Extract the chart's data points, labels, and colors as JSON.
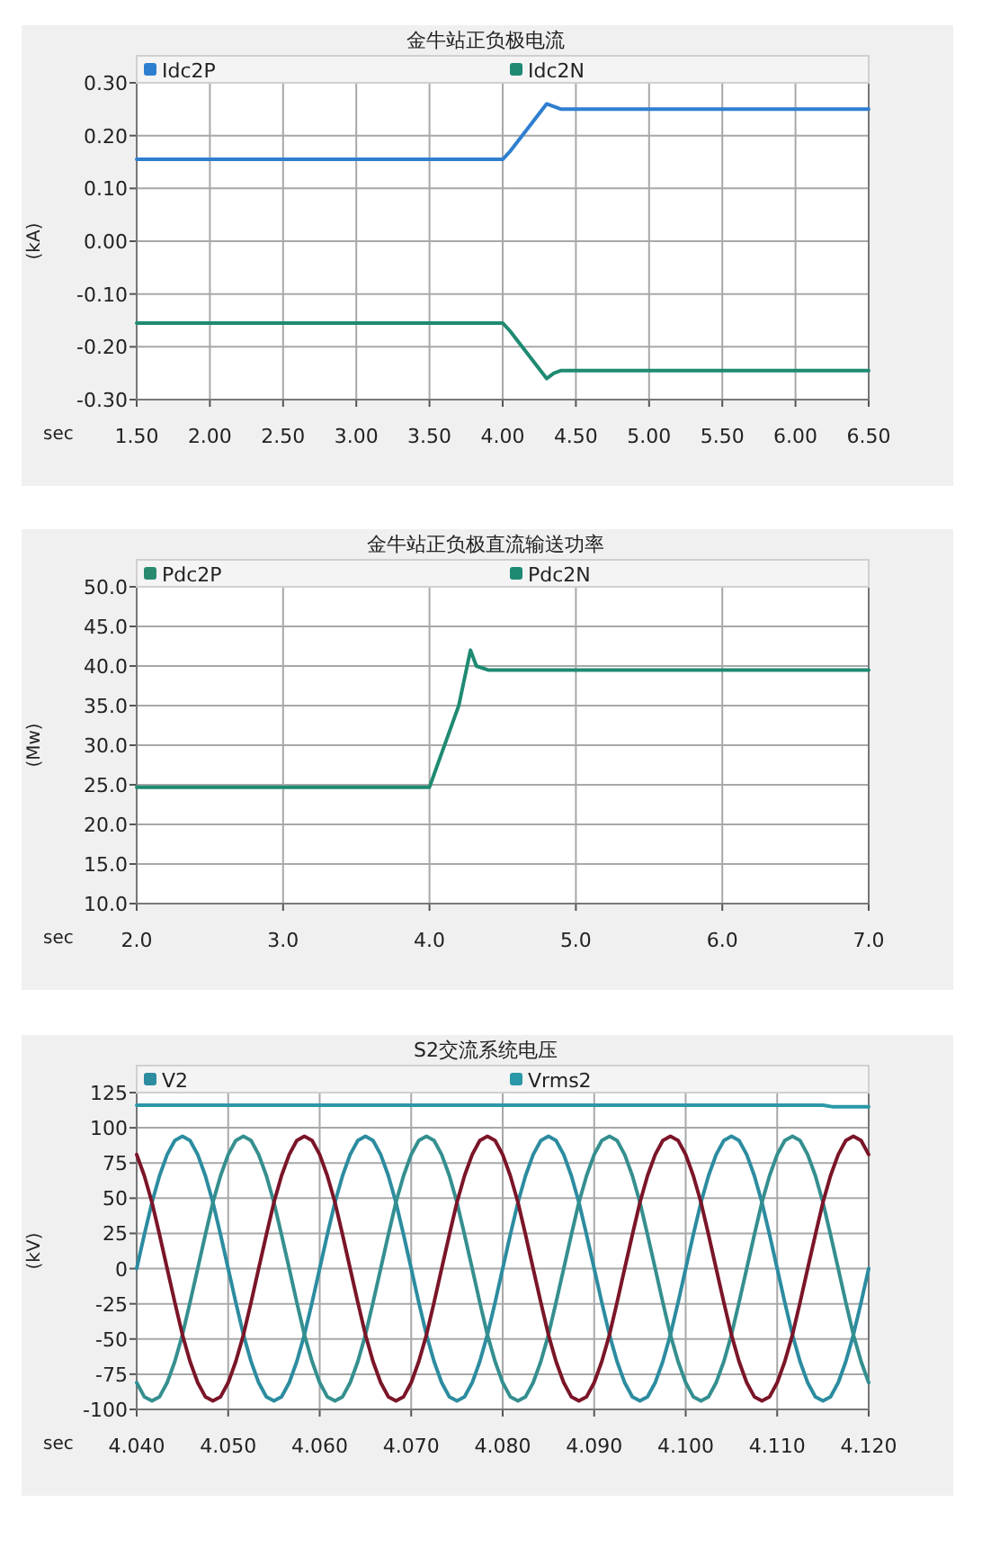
{
  "chart_data": [
    {
      "type": "line",
      "title": "金牛站正负极电流",
      "xlabel": "sec",
      "ylabel": "(kA)",
      "grid": true,
      "legend": "top",
      "xlim": [
        1.5,
        6.5
      ],
      "ylim": [
        -0.3,
        0.3
      ],
      "xticks": [
        {
          "value": 1.5,
          "label": "1.50"
        },
        {
          "value": 2,
          "label": "2.00"
        },
        {
          "value": 2.5,
          "label": "2.50"
        },
        {
          "value": 3,
          "label": "3.00"
        },
        {
          "value": 3.5,
          "label": "3.50"
        },
        {
          "value": 4,
          "label": "4.00"
        },
        {
          "value": 4.5,
          "label": "4.50"
        },
        {
          "value": 5,
          "label": "5.00"
        },
        {
          "value": 5.5,
          "label": "5.50"
        },
        {
          "value": 6,
          "label": "6.00"
        },
        {
          "value": 6.5,
          "label": "6.50"
        }
      ],
      "yticks": [
        {
          "value": -0.3,
          "label": "-0.30"
        },
        {
          "value": -0.2,
          "label": "-0.20"
        },
        {
          "value": -0.1,
          "label": "-0.10"
        },
        {
          "value": 0,
          "label": "0.00"
        },
        {
          "value": 0.1,
          "label": "0.10"
        },
        {
          "value": 0.2,
          "label": "0.20"
        },
        {
          "value": 0.3,
          "label": "0.30"
        }
      ],
      "series": [
        {
          "name": "Idc2P",
          "color": "#2f7fd0",
          "x": [
            1.5,
            4.0,
            4.05,
            4.3,
            4.35,
            4.4,
            6.5
          ],
          "values": [
            0.155,
            0.155,
            0.17,
            0.26,
            0.255,
            0.25,
            0.25
          ]
        },
        {
          "name": "Idc2N",
          "color": "#1e8a72",
          "x": [
            1.5,
            4.0,
            4.05,
            4.3,
            4.35,
            4.4,
            6.5
          ],
          "values": [
            -0.155,
            -0.155,
            -0.17,
            -0.26,
            -0.25,
            -0.245,
            -0.245
          ]
        }
      ]
    },
    {
      "type": "line",
      "title": "金牛站正负极直流输送功率",
      "xlabel": "sec",
      "ylabel": "(Mw)",
      "grid": true,
      "legend": "top",
      "xlim": [
        2,
        7
      ],
      "ylim": [
        10,
        50
      ],
      "xticks": [
        {
          "value": 2,
          "label": "2.0"
        },
        {
          "value": 3,
          "label": "3.0"
        },
        {
          "value": 4,
          "label": "4.0"
        },
        {
          "value": 5,
          "label": "5.0"
        },
        {
          "value": 6,
          "label": "6.0"
        },
        {
          "value": 7,
          "label": "7.0"
        }
      ],
      "yticks": [
        {
          "value": 10,
          "label": "10.0"
        },
        {
          "value": 15,
          "label": "15.0"
        },
        {
          "value": 20,
          "label": "20.0"
        },
        {
          "value": 25,
          "label": "25.0"
        },
        {
          "value": 30,
          "label": "30.0"
        },
        {
          "value": 35,
          "label": "35.0"
        },
        {
          "value": 40,
          "label": "40.0"
        },
        {
          "value": 45,
          "label": "45.0"
        },
        {
          "value": 50,
          "label": "50.0"
        }
      ],
      "series": [
        {
          "name": "Pdc2P",
          "color": "#2a8a70"
        },
        {
          "name": "Pdc2N",
          "color": "#1e8a72",
          "x": [
            2.0,
            4.0,
            4.2,
            4.28,
            4.32,
            4.4,
            7.0
          ],
          "values": [
            24.7,
            24.7,
            35,
            42,
            40,
            39.5,
            39.5
          ]
        }
      ]
    },
    {
      "type": "line",
      "title": "S2交流系统电压",
      "xlabel": "sec",
      "ylabel": "(kV)",
      "grid": true,
      "legend": "top",
      "xlim": [
        4.04,
        4.12
      ],
      "ylim": [
        -100,
        125
      ],
      "xticks": [
        {
          "value": 4.04,
          "label": "4.040"
        },
        {
          "value": 4.05,
          "label": "4.050"
        },
        {
          "value": 4.06,
          "label": "4.060"
        },
        {
          "value": 4.07,
          "label": "4.070"
        },
        {
          "value": 4.08,
          "label": "4.080"
        },
        {
          "value": 4.09,
          "label": "4.090"
        },
        {
          "value": 4.1,
          "label": "4.100"
        },
        {
          "value": 4.11,
          "label": "4.110"
        },
        {
          "value": 4.12,
          "label": "4.120"
        }
      ],
      "yticks": [
        -100,
        -75,
        -50,
        -25,
        0,
        25,
        50,
        75,
        100,
        125
      ],
      "x": [
        4.04,
        4.04083,
        4.04167,
        4.0425,
        4.04333,
        4.04417,
        4.045,
        4.04583,
        4.04667,
        4.0475,
        4.04833,
        4.04917,
        4.05,
        4.05083,
        4.05167,
        4.0525,
        4.05333,
        4.05417,
        4.055,
        4.05583,
        4.05667,
        4.0575,
        4.05833,
        4.05917,
        4.06,
        4.06083,
        4.06167,
        4.0625,
        4.06333,
        4.06417,
        4.065,
        4.06583,
        4.06667,
        4.0675,
        4.06833,
        4.06917,
        4.07,
        4.07083,
        4.07167,
        4.0725,
        4.07333,
        4.07417,
        4.075,
        4.07583,
        4.07667,
        4.0775,
        4.07833,
        4.07917,
        4.08,
        4.08083,
        4.08167,
        4.0825,
        4.08333,
        4.08417,
        4.085,
        4.08583,
        4.08667,
        4.0875,
        4.08833,
        4.08917,
        4.09,
        4.09083,
        4.09167,
        4.0925,
        4.09333,
        4.09417,
        4.095,
        4.09583,
        4.09667,
        4.0975,
        4.09833,
        4.09917,
        4.1,
        4.10083,
        4.10167,
        4.1025,
        4.10333,
        4.10417,
        4.105,
        4.10583,
        4.10667,
        4.1075,
        4.10833,
        4.10917,
        4.11,
        4.11083,
        4.11167,
        4.1125,
        4.11333,
        4.11417,
        4.115,
        4.11583,
        4.11667,
        4.1175,
        4.11833,
        4.11917,
        4.12
      ],
      "series": [
        {
          "name": "V2",
          "color": "#2c8ca0",
          "values": [
            0,
            24,
            47,
            66,
            81,
            91,
            94,
            91,
            81,
            66,
            47,
            24,
            0,
            -24,
            -47,
            -66,
            -81,
            -91,
            -94,
            -91,
            -81,
            -66,
            -47,
            -24,
            0,
            24,
            47,
            66,
            81,
            91,
            94,
            91,
            81,
            66,
            47,
            24,
            0,
            -24,
            -47,
            -66,
            -81,
            -91,
            -94,
            -91,
            -81,
            -66,
            -47,
            -24,
            0,
            24,
            47,
            66,
            81,
            91,
            94,
            91,
            81,
            66,
            47,
            24,
            0,
            -24,
            -47,
            -66,
            -81,
            -91,
            -94,
            -91,
            -81,
            -66,
            -47,
            -24,
            0,
            24,
            47,
            66,
            81,
            91,
            94,
            91,
            81,
            66,
            47,
            24,
            0,
            -24,
            -47,
            -66,
            -81,
            -91,
            -94,
            -91,
            -81,
            -66,
            -47,
            -24,
            0
          ]
        },
        {
          "color": "#358f8f",
          "values": [
            -81,
            -91,
            -94,
            -91,
            -81,
            -66,
            -47,
            -24,
            0,
            24,
            47,
            66,
            81,
            91,
            94,
            91,
            81,
            66,
            47,
            24,
            0,
            -24,
            -47,
            -66,
            -81,
            -91,
            -94,
            -91,
            -81,
            -66,
            -47,
            -24,
            0,
            24,
            47,
            66,
            81,
            91,
            94,
            91,
            81,
            66,
            47,
            24,
            0,
            -24,
            -47,
            -66,
            -81,
            -91,
            -94,
            -91,
            -81,
            -66,
            -47,
            -24,
            0,
            24,
            47,
            66,
            81,
            91,
            94,
            91,
            81,
            66,
            47,
            24,
            0,
            -24,
            -47,
            -66,
            -81,
            -91,
            -94,
            -91,
            -81,
            -66,
            -47,
            -24,
            0,
            24,
            47,
            66,
            81,
            91,
            94,
            91,
            81,
            66,
            47,
            24,
            0,
            -24,
            -47,
            -66,
            -81
          ]
        },
        {
          "color": "#7b1528",
          "values": [
            81,
            66,
            47,
            24,
            0,
            -24,
            -47,
            -66,
            -81,
            -91,
            -94,
            -91,
            -81,
            -66,
            -47,
            -24,
            0,
            24,
            47,
            66,
            81,
            91,
            94,
            91,
            81,
            66,
            47,
            24,
            0,
            -24,
            -47,
            -66,
            -81,
            -91,
            -94,
            -91,
            -81,
            -66,
            -47,
            -24,
            0,
            24,
            47,
            66,
            81,
            91,
            94,
            91,
            81,
            66,
            47,
            24,
            0,
            -24,
            -47,
            -66,
            -81,
            -91,
            -94,
            -91,
            -81,
            -66,
            -47,
            -24,
            0,
            24,
            47,
            66,
            81,
            91,
            94,
            91,
            81,
            66,
            47,
            24,
            0,
            -24,
            -47,
            -66,
            -81,
            -91,
            -94,
            -91,
            -81,
            -66,
            -47,
            -24,
            0,
            24,
            47,
            66,
            81,
            91,
            94,
            91,
            81
          ]
        },
        {
          "name": "Vrms2",
          "color": "#2a98a8",
          "x": [
            4.04,
            4.115,
            4.116,
            4.12
          ],
          "values": [
            116,
            116,
            115,
            115
          ]
        }
      ]
    }
  ]
}
